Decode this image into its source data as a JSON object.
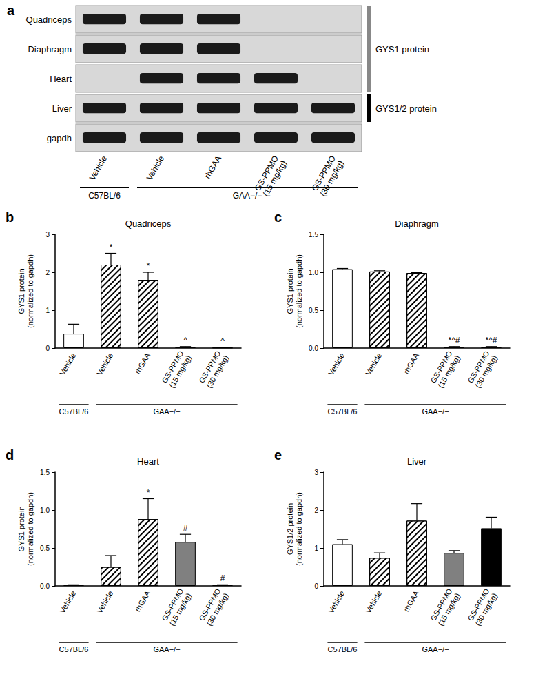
{
  "blot": {
    "panel": "a",
    "lanes": [
      "Vehicle",
      "Vehicle",
      "rhGAA",
      "GS-PPMO\n(15 mg/kg)",
      "GS-PPMO\n(30 mg/kg)"
    ],
    "groups": [
      {
        "label": "C57BL/6",
        "span": [
          0,
          0
        ]
      },
      {
        "label": "GAA−/−",
        "span": [
          1,
          4
        ]
      }
    ],
    "rows": [
      {
        "label": "Quadriceps",
        "bands": [
          true,
          true,
          true,
          false,
          false
        ]
      },
      {
        "label": "Diaphragm",
        "bands": [
          true,
          true,
          true,
          false,
          false
        ]
      },
      {
        "label": "Heart",
        "bands": [
          false,
          true,
          true,
          true,
          false
        ]
      },
      {
        "label": "Liver",
        "bands": [
          true,
          true,
          true,
          true,
          true
        ]
      },
      {
        "label": "gapdh",
        "bands": [
          true,
          true,
          true,
          true,
          true
        ]
      }
    ],
    "brackets": [
      {
        "label": "GYS1 protein",
        "rows": [
          0,
          2
        ],
        "color": "#888888"
      },
      {
        "label": "GYS1/2 protein",
        "rows": [
          3,
          3
        ],
        "color": "#000000"
      }
    ]
  },
  "chart_data": [
    {
      "type": "bar",
      "panel": "b",
      "title": "Quadriceps",
      "y_label": "GYS1 protein\n(normalized to gapdh)",
      "categories": [
        "Vehicle",
        "Vehicle",
        "rhGAA",
        "GS-PPMO\n(15 mg/kg)",
        "GS-PPMO\n(30 mg/kg)"
      ],
      "groups": [
        {
          "label": "C57BL/6",
          "span": [
            0,
            0
          ]
        },
        {
          "label": "GAA−/−",
          "span": [
            1,
            4
          ]
        }
      ],
      "values": [
        0.38,
        2.2,
        1.8,
        0.02,
        0.01
      ],
      "errors": [
        0.25,
        0.3,
        0.2,
        0.02,
        0.01
      ],
      "annotations": [
        null,
        "*",
        "*",
        "^",
        "^"
      ],
      "colors": [
        "#ffffff",
        "#ffffff",
        "#ffffff",
        "#808080",
        "#000000"
      ],
      "ylim": [
        0,
        3
      ],
      "yticks": [
        0,
        1,
        2,
        3
      ],
      "grid": false
    },
    {
      "type": "bar",
      "panel": "c",
      "title": "Diaphragm",
      "y_label": "GYS1 protein\n(normalized to gapdh)",
      "categories": [
        "Vehicle",
        "Vehicle",
        "rhGAA",
        "GS-PPMO\n(15 mg/kg)",
        "GS-PPMO\n(30 mg/kg)"
      ],
      "groups": [
        {
          "label": "C57BL/6",
          "span": [
            0,
            0
          ]
        },
        {
          "label": "GAA−/−",
          "span": [
            1,
            4
          ]
        }
      ],
      "values": [
        1.04,
        1.01,
        0.99,
        0.01,
        0.01
      ],
      "errors": [
        0.01,
        0.01,
        0.005,
        0.01,
        0.01
      ],
      "annotations": [
        null,
        null,
        null,
        "*^#",
        "*^#"
      ],
      "colors": [
        "#ffffff",
        "#ffffff",
        "#ffffff",
        "#808080",
        "#000000"
      ],
      "ylim": [
        0,
        1.5
      ],
      "yticks": [
        {
          "value": 0,
          "label": "0.0"
        },
        0.5,
        {
          "value": 1,
          "label": "1.0"
        },
        1.5
      ],
      "grid": false
    },
    {
      "type": "bar",
      "panel": "d",
      "title": "Heart",
      "y_label": "GYS1 protein\n(normalized to gapdh)",
      "categories": [
        "Vehicle",
        "Vehicle",
        "rhGAA",
        "GS-PPMO\n(15 mg/kg)",
        "GS-PPMO\n(30 mg/kg)"
      ],
      "groups": [
        {
          "label": "C57BL/6",
          "span": [
            0,
            0
          ]
        },
        {
          "label": "GAA−/−",
          "span": [
            1,
            4
          ]
        }
      ],
      "values": [
        0.01,
        0.25,
        0.88,
        0.58,
        0.01
      ],
      "errors": [
        0.005,
        0.15,
        0.27,
        0.1,
        0.005
      ],
      "annotations": [
        null,
        null,
        "*",
        "#",
        "#"
      ],
      "colors": [
        "#ffffff",
        "#ffffff",
        "#ffffff",
        "#808080",
        "#000000"
      ],
      "ylim": [
        0,
        1.5
      ],
      "yticks": [
        {
          "value": 0,
          "label": "0.0"
        },
        0.5,
        {
          "value": 1,
          "label": "1.0"
        },
        1.5
      ],
      "grid": false
    },
    {
      "type": "bar",
      "panel": "e",
      "title": "Liver",
      "y_label": "GYS1/2 protein\n(normalized to gapdh)",
      "categories": [
        "Vehicle",
        "Vehicle",
        "rhGAA",
        "GS-PPMO\n(15 mg/kg)",
        "GS-PPMO\n(30 mg/kg)"
      ],
      "groups": [
        {
          "label": "C57BL/6",
          "span": [
            0,
            0
          ]
        },
        {
          "label": "GAA−/−",
          "span": [
            1,
            4
          ]
        }
      ],
      "values": [
        1.1,
        0.74,
        1.72,
        0.87,
        1.52
      ],
      "errors": [
        0.12,
        0.13,
        0.45,
        0.06,
        0.29
      ],
      "annotations": [
        null,
        null,
        null,
        null,
        null
      ],
      "colors": [
        "#ffffff",
        "#ffffff",
        "#ffffff",
        "#808080",
        "#000000"
      ],
      "ylim": [
        0,
        3
      ],
      "yticks": [
        0,
        1,
        2,
        3
      ],
      "grid": false
    }
  ]
}
